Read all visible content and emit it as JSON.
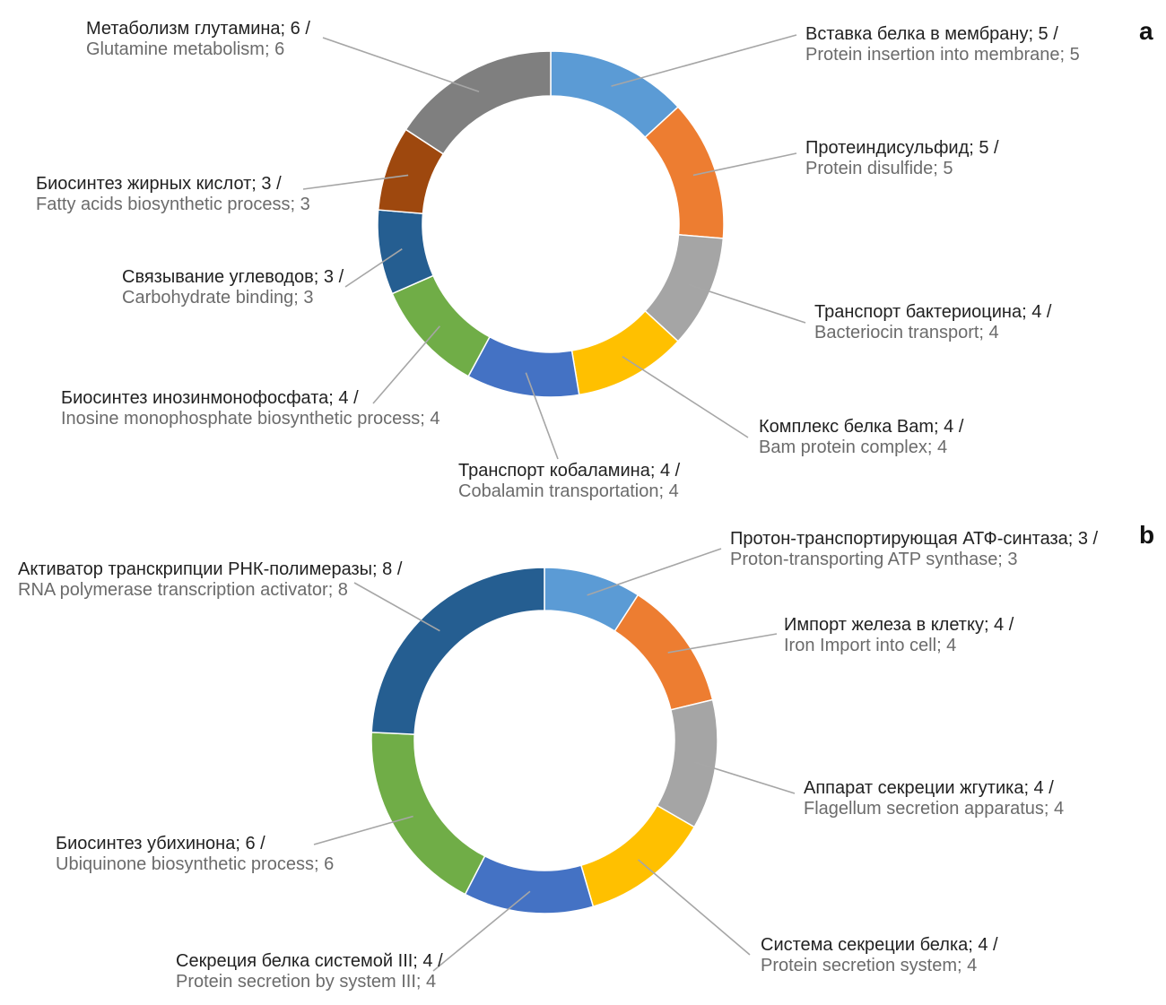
{
  "chart_data": [
    {
      "type": "pie",
      "panel_label": "a",
      "hole": "donut",
      "categories": [
        "Вставка белка в мембрану; 5 / Protein insertion into membrane; 5",
        "Протеиндисульфид; 5 / Protein disulfide; 5",
        "Транспорт бактериоцина; 4 / Bacteriocin transport; 4",
        "Комплекс белка Bam; 4 / Bam protein complex; 4",
        "Транспорт кобаламина; 4 / Cobalamin transportation; 4",
        "Биосинтез инозинмонофосфата; 4 / Inosine monophosphate biosynthetic process; 4",
        "Связывание углеводов; 3 / Carbohydrate binding; 3",
        "Биосинтез жирных кислот; 3 / Fatty acids biosynthetic process; 3",
        "Метаболизм глутамина; 6 / Glutamine metabolism; 6"
      ],
      "slices": [
        {
          "ru": "Вставка белка в мембрану; 5 /",
          "en": "Protein insertion into membrane; 5",
          "value": 5,
          "color": "#5B9BD5"
        },
        {
          "ru": "Протеиндисульфид; 5 /",
          "en": "Protein disulfide; 5",
          "value": 5,
          "color": "#ED7D31"
        },
        {
          "ru": "Транспорт бактериоцина; 4 /",
          "en": "Bacteriocin transport; 4",
          "value": 4,
          "color": "#A5A5A5"
        },
        {
          "ru": "Комплекс белка Bam; 4 /",
          "en": "Bam protein complex; 4",
          "value": 4,
          "color": "#FFC000"
        },
        {
          "ru": "Транспорт кобаламина; 4 /",
          "en": "Cobalamin transportation; 4",
          "value": 4,
          "color": "#4472C4"
        },
        {
          "ru": "Биосинтез инозинмонофосфата; 4 /",
          "en": "Inosine monophosphate biosynthetic process; 4",
          "value": 4,
          "color": "#70AD47"
        },
        {
          "ru": "Связывание углеводов; 3 /",
          "en": "Carbohydrate binding; 3",
          "value": 3,
          "color": "#255E91"
        },
        {
          "ru": "Биосинтез жирных кислот; 3 /",
          "en": "Fatty acids biosynthetic process; 3",
          "value": 3,
          "color": "#9E480E"
        },
        {
          "ru": "Метаболизм глутамина; 6 /",
          "en": "Glutamine metabolism; 6",
          "value": 6,
          "color": "#7F7F7F"
        }
      ]
    },
    {
      "type": "pie",
      "panel_label": "b",
      "hole": "donut",
      "categories": [
        "Протон-транспортирующая АТФ-синтаза; 3 / Proton-transporting ATP synthase; 3",
        "Импорт железа в клетку; 4 / Iron Import into cell; 4",
        "Аппарат секреции жгутика; 4 / Flagellum secretion apparatus; 4",
        "Система секреции белка; 4 / Protein secretion system; 4",
        "Секреция белка системой III; 4 / Protein secretion by system III; 4",
        "Биосинтез убихинона; 6 / Ubiquinone biosynthetic process; 6",
        "Активатор транскрипции РНК-полимеразы; 8 / RNA polymerase transcription activator; 8"
      ],
      "slices": [
        {
          "ru": "Протон-транспортирующая АТФ-синтаза; 3 /",
          "en": "Proton-transporting ATP synthase; 3",
          "value": 3,
          "color": "#5B9BD5"
        },
        {
          "ru": "Импорт железа в клетку; 4 /",
          "en": "Iron Import into cell; 4",
          "value": 4,
          "color": "#ED7D31"
        },
        {
          "ru": "Аппарат секреции жгутика; 4 /",
          "en": "Flagellum secretion apparatus; 4",
          "value": 4,
          "color": "#A5A5A5"
        },
        {
          "ru": "Система секреции белка; 4 /",
          "en": "Protein secretion system; 4",
          "value": 4,
          "color": "#FFC000"
        },
        {
          "ru": "Секреция белка системой III; 4 /",
          "en": "Protein secretion by system III; 4",
          "value": 4,
          "color": "#4472C4"
        },
        {
          "ru": "Биосинтез убихинона; 6 /",
          "en": "Ubiquinone biosynthetic process; 6",
          "value": 6,
          "color": "#70AD47"
        },
        {
          "ru": "Активатор транскрипции РНК-полимеразы; 8 /",
          "en": "RNA polymerase transcription activator; 8",
          "value": 8,
          "color": "#255E91"
        }
      ]
    }
  ]
}
